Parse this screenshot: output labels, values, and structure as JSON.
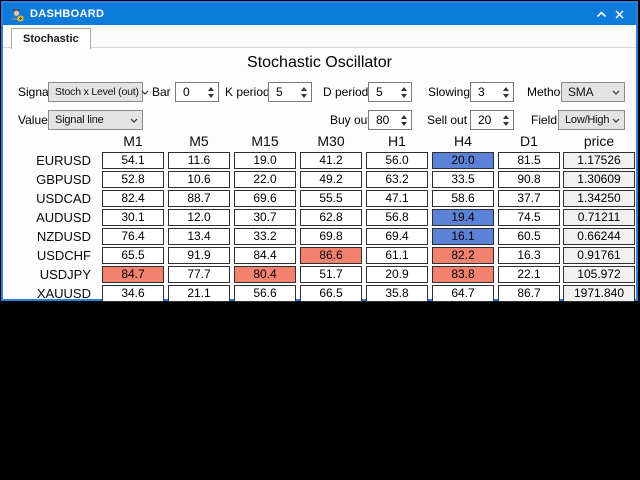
{
  "titlebar": {
    "title": "DASHBOARD"
  },
  "tabs": [
    {
      "label": "Stochastic"
    }
  ],
  "heading": "Stochastic Oscillator",
  "controls": {
    "signal": {
      "label": "Signal",
      "value": "Stoch x Level (out)"
    },
    "bar": {
      "label": "Bar",
      "value": "0"
    },
    "k_period": {
      "label": "K period",
      "value": "5"
    },
    "d_period": {
      "label": "D period",
      "value": "5"
    },
    "slowing": {
      "label": "Slowing",
      "value": "3"
    },
    "method": {
      "label": "Method",
      "value": "SMA"
    },
    "value": {
      "label": "Value",
      "value": "Signal line"
    },
    "buy_out": {
      "label": "Buy out",
      "value": "80"
    },
    "sell_out": {
      "label": "Sell out",
      "value": "20"
    },
    "field": {
      "label": "Field",
      "value": "Low/High"
    }
  },
  "table": {
    "columns": [
      "M1",
      "M5",
      "M15",
      "M30",
      "H1",
      "H4",
      "D1",
      "price"
    ],
    "rows": [
      {
        "symbol": "EURUSD",
        "values": [
          "54.1",
          "11.6",
          "19.0",
          "41.2",
          "56.0",
          "20.0",
          "81.5",
          "1.17526"
        ],
        "highlights": {
          "5": "blue"
        }
      },
      {
        "symbol": "GBPUSD",
        "values": [
          "52.8",
          "10.6",
          "22.0",
          "49.2",
          "63.2",
          "33.5",
          "90.8",
          "1.30609"
        ],
        "highlights": {}
      },
      {
        "symbol": "USDCAD",
        "values": [
          "82.4",
          "88.7",
          "69.6",
          "55.5",
          "47.1",
          "58.6",
          "37.7",
          "1.34250"
        ],
        "highlights": {}
      },
      {
        "symbol": "AUDUSD",
        "values": [
          "30.1",
          "12.0",
          "30.7",
          "62.8",
          "56.8",
          "19.4",
          "74.5",
          "0.71211"
        ],
        "highlights": {
          "5": "blue"
        }
      },
      {
        "symbol": "NZDUSD",
        "values": [
          "76.4",
          "13.4",
          "33.2",
          "69.8",
          "69.4",
          "16.1",
          "60.5",
          "0.66244"
        ],
        "highlights": {
          "5": "blue"
        }
      },
      {
        "symbol": "USDCHF",
        "values": [
          "65.5",
          "91.9",
          "84.4",
          "86.6",
          "61.1",
          "82.2",
          "16.3",
          "0.91761"
        ],
        "highlights": {
          "3": "red",
          "5": "red"
        }
      },
      {
        "symbol": "USDJPY",
        "values": [
          "84.7",
          "77.7",
          "80.4",
          "51.7",
          "20.9",
          "83.8",
          "22.1",
          "105.972"
        ],
        "highlights": {
          "0": "red",
          "2": "red",
          "5": "red"
        }
      },
      {
        "symbol": "XAUUSD",
        "values": [
          "34.6",
          "21.1",
          "56.6",
          "66.5",
          "35.8",
          "64.7",
          "86.7",
          "1971.840"
        ],
        "highlights": {}
      }
    ]
  },
  "colors": {
    "titlebar_blue": "#0d7bd9",
    "window_border_blue": "#2e7fd9",
    "oversold_blue": "#5c82d8",
    "overbought_red": "#f5826e",
    "price_cell_bg": "#f1f1f1"
  }
}
